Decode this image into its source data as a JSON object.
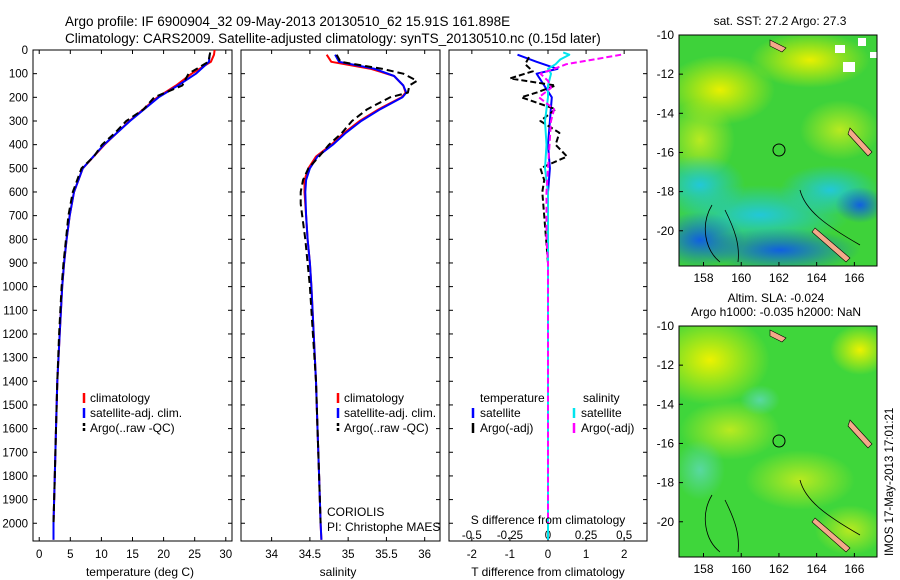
{
  "header": {
    "title1": "Argo profile: IF 6900904_32 09-May-2013 20130510_62 15.91S 161.898E",
    "title2": "Climatology: CARS2009. Satellite-adjusted climatology: synTS_20130510.nc (0.15d later)"
  },
  "credit": {
    "line1": "CORIOLIS",
    "line2": "PI: Christophe MAES"
  },
  "sidebar_stamp": "IMOS 17-May-2013 17:01:21",
  "depth_axis": {
    "ylim": [
      0,
      2075
    ],
    "ticks": [
      0,
      100,
      200,
      300,
      400,
      500,
      600,
      700,
      800,
      900,
      1000,
      1100,
      1200,
      1300,
      1400,
      1500,
      1600,
      1700,
      1800,
      1900,
      2000
    ]
  },
  "colors": {
    "climatology": "#ff0000",
    "satellite": "#0000ff",
    "argo": "#000000",
    "sal_sat": "#00e5ee",
    "sal_argo": "#ff00ff"
  },
  "legend_ts": [
    {
      "label": "climatology",
      "color": "#ff0000",
      "dash": false
    },
    {
      "label": "satellite-adj. clim.",
      "color": "#0000ff",
      "dash": false
    },
    {
      "label": "Argo(..raw -QC)",
      "color": "#000000",
      "dash": true
    }
  ],
  "legend_diff": {
    "col1_title": "temperature",
    "col2_title": "salinity",
    "items1": [
      {
        "label": "satellite",
        "color": "#0000ff"
      },
      {
        "label": "Argo(-adj)",
        "color": "#000000"
      }
    ],
    "items2": [
      {
        "label": "satellite",
        "color": "#00e5ee"
      },
      {
        "label": "Argo(-adj)",
        "color": "#ff00ff"
      }
    ]
  },
  "chart_data": [
    {
      "type": "line",
      "id": "temperature",
      "xlabel": "temperature (deg C)",
      "xlim": [
        -1,
        31
      ],
      "xticks": [
        0,
        5,
        10,
        15,
        20,
        25,
        30
      ],
      "series": [
        {
          "name": "climatology",
          "y": [
            0,
            20,
            50,
            100,
            150,
            200,
            300,
            400,
            500,
            600,
            700,
            800,
            900,
            1000,
            1200,
            1400,
            1600,
            1800,
            2000,
            2070
          ],
          "x": [
            28.2,
            28.1,
            27.6,
            24.5,
            22.0,
            19.0,
            14.5,
            10.5,
            7.0,
            5.6,
            4.9,
            4.4,
            4.0,
            3.7,
            3.3,
            2.9,
            2.7,
            2.5,
            2.3,
            2.3
          ]
        },
        {
          "name": "satellite-adj. clim.",
          "y": [
            20,
            50,
            100,
            150,
            200,
            300,
            400,
            500,
            600,
            700,
            800,
            900,
            1000,
            1200,
            1400,
            1600,
            1800,
            2000,
            2070
          ],
          "x": [
            27.4,
            27.3,
            25.2,
            22.3,
            19.2,
            14.6,
            10.4,
            7.0,
            5.6,
            4.9,
            4.4,
            4.0,
            3.7,
            3.3,
            2.9,
            2.7,
            2.5,
            2.3,
            2.3
          ]
        },
        {
          "name": "Argo(..raw -QC)",
          "y": [
            10,
            50,
            100,
            150,
            200,
            250,
            300,
            350,
            400,
            450,
            500,
            600,
            700,
            800,
            900,
            1000,
            1200,
            1400,
            1600,
            1800,
            2000
          ],
          "x": [
            27.5,
            27.2,
            24.0,
            23.0,
            18.5,
            16.8,
            14.0,
            12.2,
            10.1,
            8.8,
            6.8,
            5.4,
            4.7,
            4.3,
            3.9,
            3.6,
            3.2,
            2.9,
            2.7,
            2.5,
            2.3
          ]
        }
      ]
    },
    {
      "type": "line",
      "id": "salinity",
      "xlabel": "salinity",
      "xlim": [
        33.6,
        36.2
      ],
      "xticks": [
        34,
        34.5,
        35,
        35.5,
        36
      ],
      "xticklabels": [
        "34",
        "34.5",
        "35",
        "35.5",
        "36"
      ],
      "series": [
        {
          "name": "climatology",
          "y": [
            20,
            50,
            80,
            110,
            150,
            180,
            200,
            250,
            300,
            350,
            400,
            450,
            500,
            550,
            600,
            700,
            800,
            900,
            1000,
            1200,
            1400,
            1600,
            1800,
            2000,
            2070
          ],
          "x": [
            34.72,
            34.78,
            35.3,
            35.6,
            35.72,
            35.75,
            35.7,
            35.4,
            35.15,
            34.95,
            34.78,
            34.58,
            34.48,
            34.43,
            34.43,
            34.45,
            34.47,
            34.5,
            34.52,
            34.55,
            34.58,
            34.6,
            34.62,
            34.64,
            34.65
          ]
        },
        {
          "name": "satellite-adj. clim.",
          "y": [
            20,
            50,
            80,
            110,
            150,
            180,
            200,
            250,
            300,
            350,
            400,
            450,
            500,
            550,
            600,
            700,
            800,
            900,
            1000,
            1200,
            1400,
            1600,
            1800,
            2000,
            2070
          ],
          "x": [
            34.83,
            34.88,
            35.35,
            35.6,
            35.72,
            35.76,
            35.71,
            35.42,
            35.17,
            34.97,
            34.8,
            34.6,
            34.5,
            34.45,
            34.44,
            34.45,
            34.47,
            34.5,
            34.52,
            34.55,
            34.58,
            34.6,
            34.62,
            34.64,
            34.65
          ]
        },
        {
          "name": "Argo(..raw -QC)",
          "y": [
            20,
            50,
            80,
            100,
            130,
            150,
            180,
            200,
            250,
            300,
            350,
            400,
            450,
            500,
            550,
            600,
            650,
            700,
            800,
            900,
            1000,
            1200,
            1400,
            1600,
            1800,
            2000
          ],
          "x": [
            34.85,
            34.9,
            35.45,
            35.72,
            35.9,
            35.8,
            35.78,
            35.55,
            35.25,
            35.05,
            34.92,
            34.75,
            34.62,
            34.48,
            34.41,
            34.38,
            34.38,
            34.4,
            34.44,
            34.47,
            34.5,
            34.54,
            34.58,
            34.6,
            34.62,
            34.64
          ]
        }
      ]
    },
    {
      "type": "line",
      "id": "difference",
      "xlabel": "T difference from climatology",
      "xlim": [
        -2.6,
        2.6
      ],
      "xticks": [
        -2,
        -1,
        0,
        1,
        2
      ],
      "xlabel2": "S difference from climatology",
      "x2ticks": [
        -0.5,
        -0.25,
        0,
        0.25,
        0.5
      ],
      "x2ticklabels": [
        "-0.5",
        "-0.25",
        "0",
        "0.25",
        "0.5"
      ],
      "x2lim": [
        -0.65,
        0.65
      ],
      "series": [
        {
          "name": "temperature satellite",
          "axis": "T",
          "y": [
            20,
            50,
            80,
            100,
            150,
            200,
            300,
            400,
            500,
            600,
            800,
            1000,
            1200,
            1400,
            1600,
            1800,
            2000,
            2070
          ],
          "x": [
            -0.8,
            -0.3,
            0.25,
            -0.3,
            -0.1,
            0.1,
            0.05,
            0,
            0.05,
            0,
            0,
            0,
            0,
            0,
            0,
            0,
            0,
            0
          ]
        },
        {
          "name": "temperature Argo(-adj)",
          "axis": "T",
          "y": [
            30,
            60,
            90,
            120,
            150,
            180,
            200,
            250,
            300,
            350,
            400,
            450,
            500,
            550,
            600,
            700,
            800,
            900,
            1000,
            1200,
            1400,
            1600,
            1800,
            2000
          ],
          "x": [
            -0.5,
            -0.6,
            -0.4,
            -1.0,
            0.2,
            -0.3,
            -0.7,
            0.2,
            -0.2,
            0.3,
            0.2,
            0.5,
            -0.2,
            -0.1,
            -0.15,
            -0.1,
            -0.05,
            0,
            0,
            0,
            0,
            0,
            0,
            0
          ]
        },
        {
          "name": "salinity satellite",
          "axis": "S",
          "y": [
            10,
            20,
            40,
            60,
            80,
            100,
            150,
            200,
            300,
            400,
            500,
            600,
            800,
            1000,
            1200,
            1400,
            1600,
            1800,
            2000,
            2070
          ],
          "x": [
            0.1,
            0.14,
            0.08,
            0.05,
            0.0,
            0.02,
            0.0,
            0.0,
            -0.02,
            -0.01,
            -0.02,
            0,
            0,
            0,
            0,
            0,
            0,
            0,
            0,
            0
          ]
        },
        {
          "name": "salinity Argo(-adj)",
          "axis": "S",
          "y": [
            20,
            40,
            60,
            80,
            100,
            130,
            160,
            200,
            250,
            300,
            400,
            500,
            600,
            700,
            800,
            900,
            1000,
            1200,
            1400,
            1600,
            1800,
            2000
          ],
          "x": [
            0.48,
            0.3,
            0.12,
            0.04,
            -0.05,
            0.0,
            0.02,
            -0.06,
            0.04,
            0.02,
            0.01,
            0.0,
            -0.01,
            -0.01,
            -0.01,
            0,
            0,
            0,
            0,
            0,
            0,
            0
          ]
        }
      ]
    },
    {
      "type": "heatmap",
      "id": "sst_map",
      "title": "sat. SST: 27.2 Argo: 27.3",
      "xlim": [
        156.7,
        167.2
      ],
      "ylim": [
        -21.8,
        -10
      ],
      "xticks": [
        158,
        160,
        162,
        164,
        166
      ],
      "yticks": [
        -10,
        -12,
        -14,
        -16,
        -18,
        -20
      ],
      "profile_location": {
        "lon": 161.898,
        "lat": -15.91
      }
    },
    {
      "type": "heatmap",
      "id": "sla_map",
      "title": "Altim. SLA: -0.024",
      "subtitle": "Argo h1000: -0.035 h2000: NaN",
      "xlim": [
        156.7,
        167.2
      ],
      "ylim": [
        -21.8,
        -10
      ],
      "xticks": [
        158,
        160,
        162,
        164,
        166
      ],
      "yticks": [
        -10,
        -12,
        -14,
        -16,
        -18,
        -20
      ],
      "profile_location": {
        "lon": 161.898,
        "lat": -15.91
      }
    }
  ]
}
